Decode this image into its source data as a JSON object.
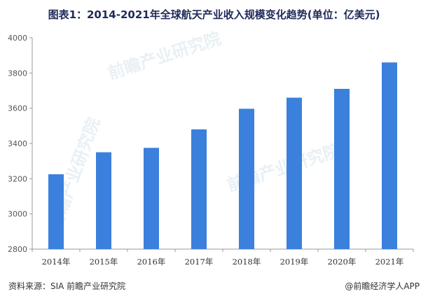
{
  "title": "图表1：2014-2021年全球航天产业收入规模变化趋势(单位：亿美元)",
  "source": "资料来源：SIA 前瞻产业研究院",
  "credit": "@前瞻经济学人APP",
  "watermark": [
    "前瞻产业研究院",
    "前瞻产业研究院",
    "前瞻产业研究院"
  ],
  "colors": {
    "bar": "#3b80dc",
    "axis": "#999999",
    "grid": "#d9d9d9"
  },
  "chart_data": {
    "type": "bar",
    "title": "图表1：2014-2021年全球航天产业收入规模变化趋势(单位：亿美元)",
    "xlabel": "",
    "ylabel": "",
    "categories": [
      "2014年",
      "2015年",
      "2016年",
      "2017年",
      "2018年",
      "2019年",
      "2020年",
      "2021年"
    ],
    "values": [
      3225,
      3350,
      3375,
      3480,
      3597,
      3660,
      3710,
      3860
    ],
    "ylim": [
      2800,
      4000
    ],
    "yticks": [
      2800,
      3000,
      3200,
      3400,
      3600,
      3800,
      4000
    ],
    "grid": true
  }
}
